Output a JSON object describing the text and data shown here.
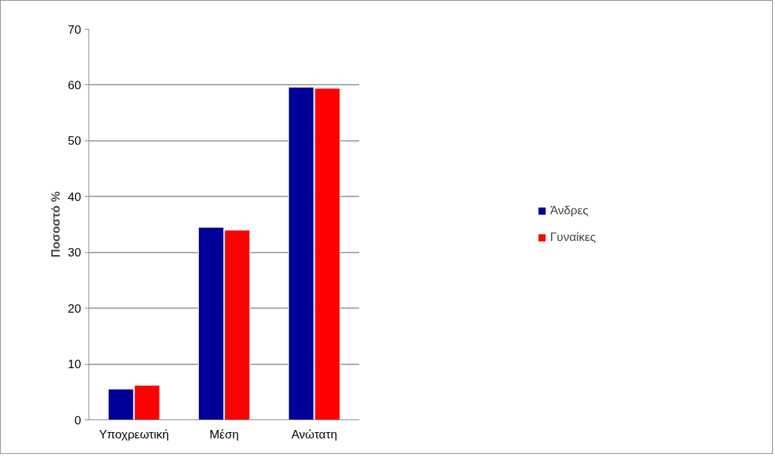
{
  "chart_data": {
    "type": "bar",
    "ylabel": "Ποσοστό %",
    "categories": [
      "Υποχρεωτική",
      "Μέση",
      "Ανώτατη"
    ],
    "series": [
      {
        "name": "Άνδρες",
        "color": "#000099",
        "values": [
          5.5,
          34.5,
          59.6
        ]
      },
      {
        "name": "Γυναίκες",
        "color": "#ff0000",
        "values": [
          6.2,
          34.0,
          59.4
        ]
      }
    ],
    "ylim": [
      0,
      70
    ],
    "yticks": [
      0,
      10,
      20,
      30,
      40,
      50,
      60,
      70
    ],
    "grid": "y",
    "legend": "right"
  }
}
